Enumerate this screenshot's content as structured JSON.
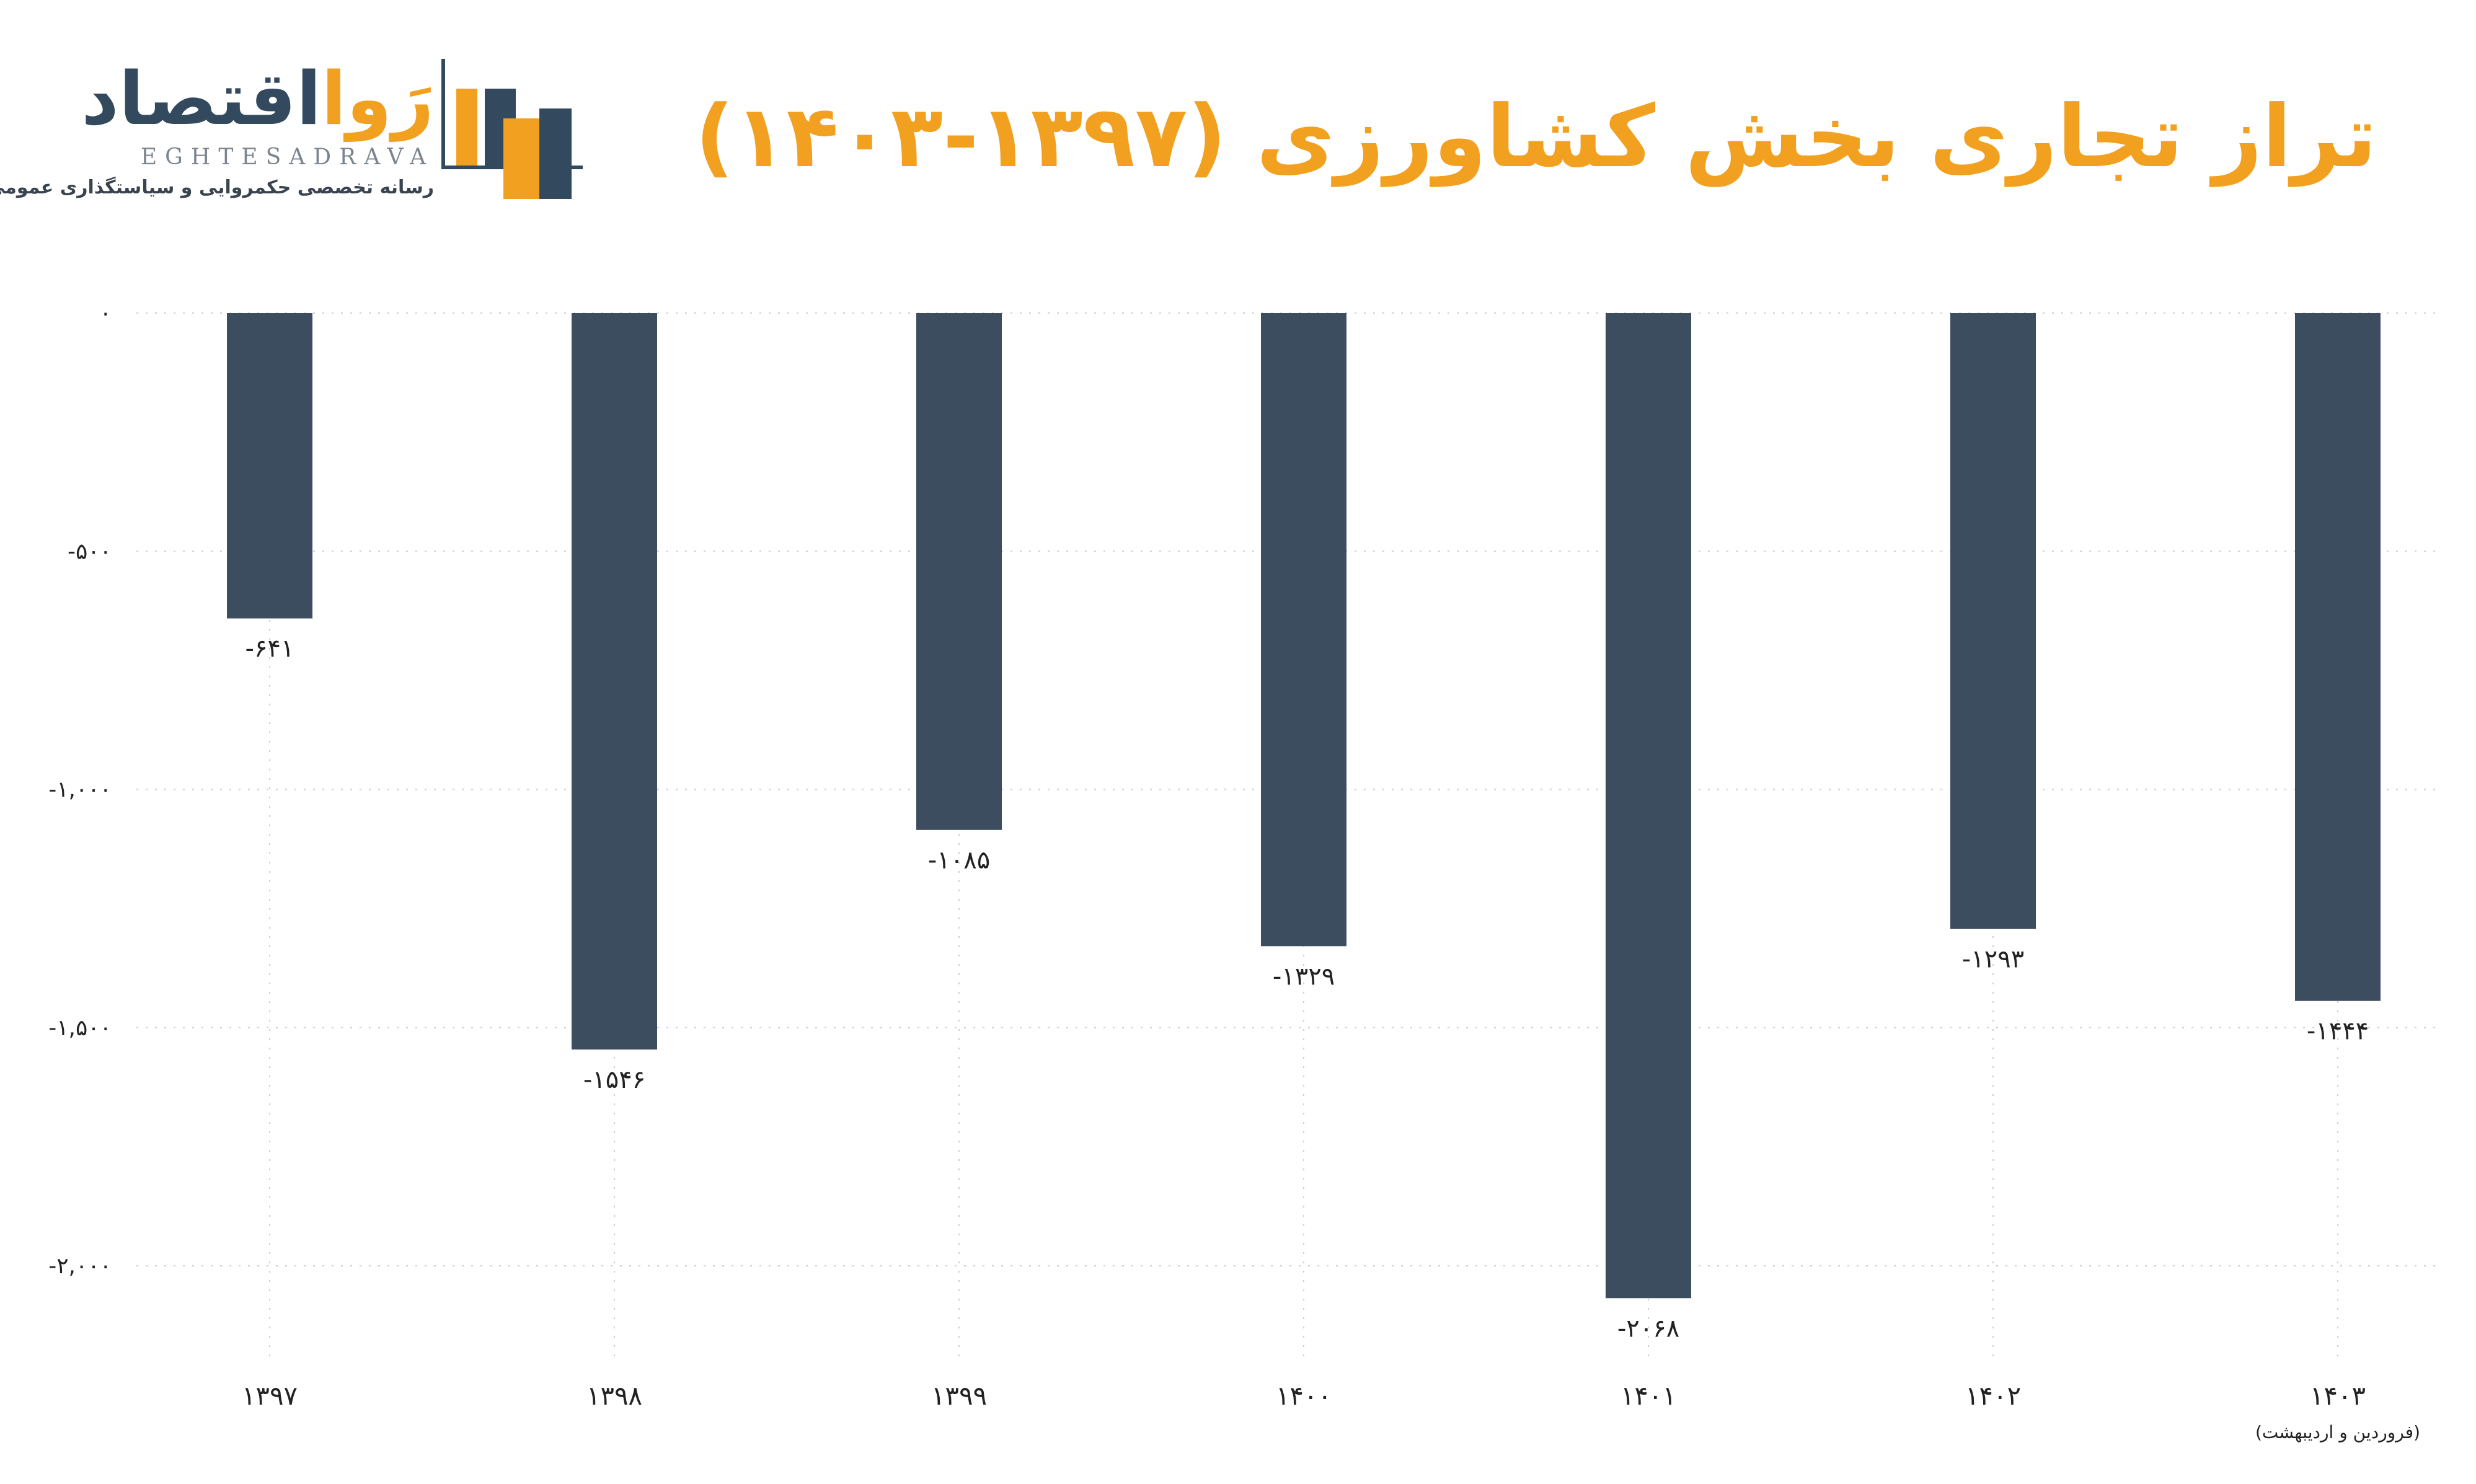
{
  "logo": {
    "word_part1": "اقتصاد",
    "word_part2": "رَوا",
    "latin": "EGHTESADRAVA",
    "tagline": "رسانه تخصصی حکمروایی و سیاستگذاری عمومی و اقتصادی",
    "colors": {
      "dark": "#334A5E",
      "accent": "#F2A01F"
    }
  },
  "chart_data": {
    "type": "bar",
    "title": "تراز تجاری بخش کشاورزی (۱۳۹۷-۱۴۰۳)",
    "categories": [
      "۱۳۹۷",
      "۱۳۹۸",
      "۱۳۹۹",
      "۱۴۰۰",
      "۱۴۰۱",
      "۱۴۰۲",
      "۱۴۰۳"
    ],
    "category_notes": [
      "",
      "",
      "",
      "",
      "",
      "",
      "(فروردین و اردیبهشت)"
    ],
    "values": [
      -641,
      -1546,
      -1085,
      -1329,
      -2068,
      -1293,
      -1444
    ],
    "value_labels": [
      "-۶۴۱",
      "-۱۵۴۶",
      "-۱۰۸۵",
      "-۱۳۲۹",
      "-۲۰۶۸",
      "-۱۲۹۳",
      "-۱۴۴۴"
    ],
    "ylim": [
      -2200,
      0
    ],
    "yticks": [
      0,
      -500,
      -1000,
      -1500,
      -2000
    ],
    "ytick_labels": [
      "۰",
      "-۵۰۰",
      "-۱,۰۰۰",
      "-۱,۵۰۰",
      "-۲,۰۰۰"
    ],
    "xlabel": "",
    "ylabel": "",
    "grid": true,
    "colors": {
      "bar": "#3C4D60",
      "title": "#F2A01F",
      "grid": "#cfcfcf"
    }
  }
}
